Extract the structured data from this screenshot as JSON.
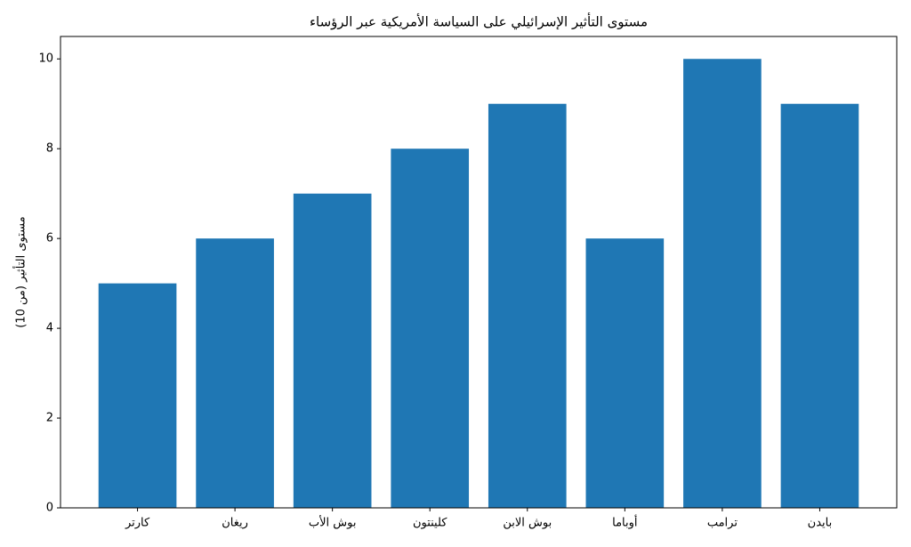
{
  "chart_data": {
    "type": "bar",
    "title": "مستوى التأثير الإسرائيلي على السياسة الأمريكية عبر الرؤساء",
    "y_label": "مستوى التأثير (من 10)",
    "categories": [
      "كارتر",
      "ريغان",
      "بوش الأب",
      "كلينتون",
      "بوش الابن",
      "أوباما",
      "ترامب",
      "بايدن"
    ],
    "values": [
      5,
      6,
      7,
      8,
      9,
      6,
      10,
      9
    ],
    "color": "#1f77b4",
    "ylim": [
      0,
      10.5
    ],
    "yticks": [
      0,
      2,
      4,
      6,
      8,
      10
    ],
    "grid": false
  }
}
